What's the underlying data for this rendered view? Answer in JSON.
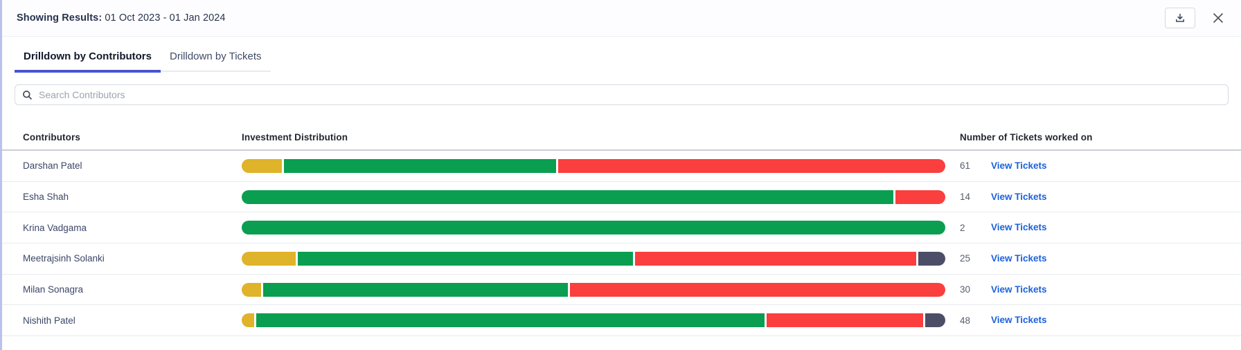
{
  "header": {
    "label": "Showing Results:",
    "value": "01 Oct 2023 - 01 Jan 2024",
    "download_icon": "download-tray-icon",
    "close_icon": "close-x-icon"
  },
  "tabs": [
    {
      "label": "Drilldown by Contributors",
      "active": true
    },
    {
      "label": "Drilldown by Tickets",
      "active": false
    }
  ],
  "search": {
    "placeholder": "Search Contributors",
    "icon": "search-icon"
  },
  "table": {
    "columns": [
      "Contributors",
      "Investment Distribution",
      "Number of Tickets worked on"
    ],
    "link_label": "View Tickets",
    "rows": [
      {
        "name": "Darshan Patel",
        "tickets": "61",
        "segments": [
          {
            "color": "yellow",
            "pct": 5.7
          },
          {
            "color": "green",
            "pct": 38.4
          },
          {
            "color": "red",
            "pct": 54.7
          }
        ]
      },
      {
        "name": "Esha Shah",
        "tickets": "14",
        "segments": [
          {
            "color": "green",
            "pct": 92.4
          },
          {
            "color": "red",
            "pct": 7.1
          }
        ]
      },
      {
        "name": "Krina Vadgama",
        "tickets": "2",
        "segments": [
          {
            "color": "green",
            "pct": 100
          }
        ]
      },
      {
        "name": "Meetrajsinh Solanki",
        "tickets": "25",
        "segments": [
          {
            "color": "yellow",
            "pct": 7.6
          },
          {
            "color": "green",
            "pct": 47.2
          },
          {
            "color": "red",
            "pct": 39.6
          },
          {
            "color": "dark",
            "pct": 3.8
          }
        ]
      },
      {
        "name": "Milan Sonagra",
        "tickets": "30",
        "segments": [
          {
            "color": "yellow",
            "pct": 2.7
          },
          {
            "color": "green",
            "pct": 43.1
          },
          {
            "color": "red",
            "pct": 53.1
          }
        ]
      },
      {
        "name": "Nishith Patel",
        "tickets": "48",
        "segments": [
          {
            "color": "yellow",
            "pct": 1.8
          },
          {
            "color": "green",
            "pct": 71.7
          },
          {
            "color": "red",
            "pct": 22.1
          },
          {
            "color": "dark",
            "pct": 2.8
          }
        ]
      }
    ]
  },
  "colors": {
    "yellow": "#dfb32a",
    "green": "#0a9e50",
    "red": "#fb3e3e",
    "dark": "#4c4d67",
    "accent": "#4655d2",
    "link": "#1b61d9"
  }
}
